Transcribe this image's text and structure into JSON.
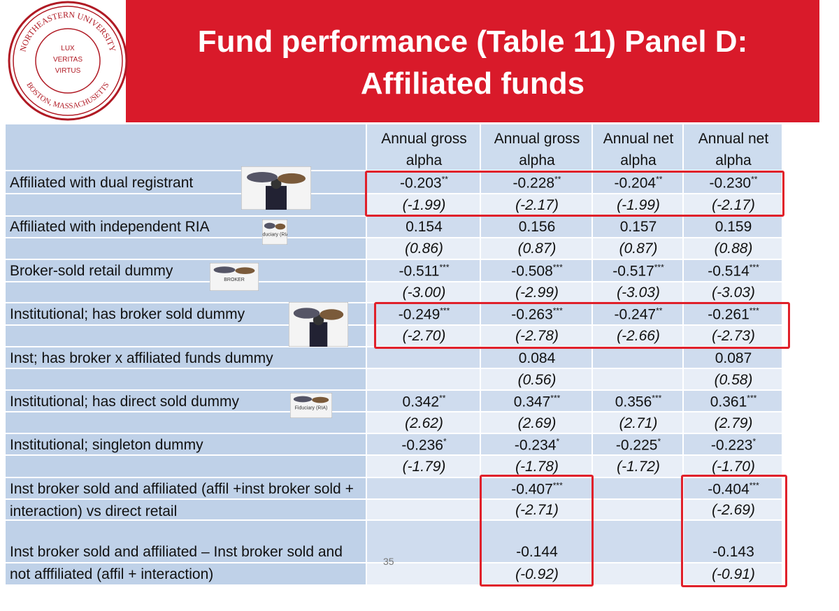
{
  "header": {
    "title_lines": [
      "Fund performance (Table 11) Panel D:",
      "Affiliated funds"
    ]
  },
  "logo": {
    "top": "NORTHEASTERN UNIVERSITY",
    "bottom": "BOSTON, MASSACHUSETTS",
    "motto": [
      "LUX",
      "VERITAS",
      "VIRTUS"
    ]
  },
  "icons": {
    "broker": "BROKER",
    "ria": "Fiduciary (RIA)"
  },
  "table": {
    "columns": [
      "Annual gross alpha",
      "Annual gross alpha",
      "Annual net alpha",
      "Annual net alpha"
    ],
    "rows": [
      {
        "label": "Affiliated with dual registrant",
        "coef": [
          "-0.203",
          "-0.228",
          "-0.204",
          "-0.230"
        ],
        "stars": [
          "**",
          "**",
          "**",
          "**"
        ],
        "t": [
          "(-1.99)",
          "(-2.17)",
          "(-1.99)",
          "(-2.17)"
        ]
      },
      {
        "label": "Affiliated with independent RIA",
        "coef": [
          "0.154",
          "0.156",
          "0.157",
          "0.159"
        ],
        "stars": [
          null,
          null,
          null,
          null
        ],
        "t": [
          "(0.86)",
          "(0.87)",
          "(0.87)",
          "(0.88)"
        ]
      },
      {
        "label": "Broker-sold retail dummy",
        "coef": [
          "-0.511",
          "-0.508",
          "-0.517",
          "-0.514"
        ],
        "stars": [
          "***",
          "***",
          "***",
          "***"
        ],
        "t": [
          "(-3.00)",
          "(-2.99)",
          "(-3.03)",
          "(-3.03)"
        ]
      },
      {
        "label": "Institutional; has broker sold dummy",
        "coef": [
          "-0.249",
          "-0.263",
          "-0.247",
          "-0.261"
        ],
        "stars": [
          "***",
          "***",
          "**",
          "***"
        ],
        "t": [
          "(-2.70)",
          "(-2.78)",
          "(-2.66)",
          "(-2.73)"
        ]
      },
      {
        "label": "Inst; has broker x affiliated funds dummy",
        "coef": [
          null,
          "0.084",
          null,
          "0.087"
        ],
        "stars": [
          null,
          null,
          null,
          null
        ],
        "t": [
          null,
          "(0.56)",
          null,
          "(0.58)"
        ]
      },
      {
        "label": "Institutional; has direct sold dummy",
        "coef": [
          "0.342",
          "0.347",
          "0.356",
          "0.361"
        ],
        "stars": [
          "**",
          "***",
          "***",
          "***"
        ],
        "t": [
          "(2.62)",
          "(2.69)",
          "(2.71)",
          "(2.79)"
        ]
      },
      {
        "label": "Institutional; singleton dummy",
        "coef": [
          "-0.236",
          "-0.234",
          "-0.225",
          "-0.223"
        ],
        "stars": [
          "*",
          "*",
          "*",
          "*"
        ],
        "t": [
          "(-1.79)",
          "(-1.78)",
          "(-1.72)",
          "(-1.70)"
        ]
      },
      {
        "label": "Inst broker sold and affiliated (affil +inst broker sold + interaction) vs direct retail",
        "coef": [
          null,
          "-0.407",
          null,
          "-0.404"
        ],
        "stars": [
          null,
          "***",
          null,
          "***"
        ],
        "t": [
          null,
          "(-2.71)",
          null,
          "(-2.69)"
        ]
      },
      {
        "label": "Inst broker sold and affiliated – Inst broker sold and not afffiliated (affil + interaction)",
        "coef": [
          null,
          "-0.144",
          null,
          "-0.143"
        ],
        "stars": [
          null,
          null,
          null,
          null
        ],
        "t": [
          null,
          "(-0.92)",
          null,
          "(-0.91)"
        ]
      }
    ]
  },
  "page_number": "35"
}
